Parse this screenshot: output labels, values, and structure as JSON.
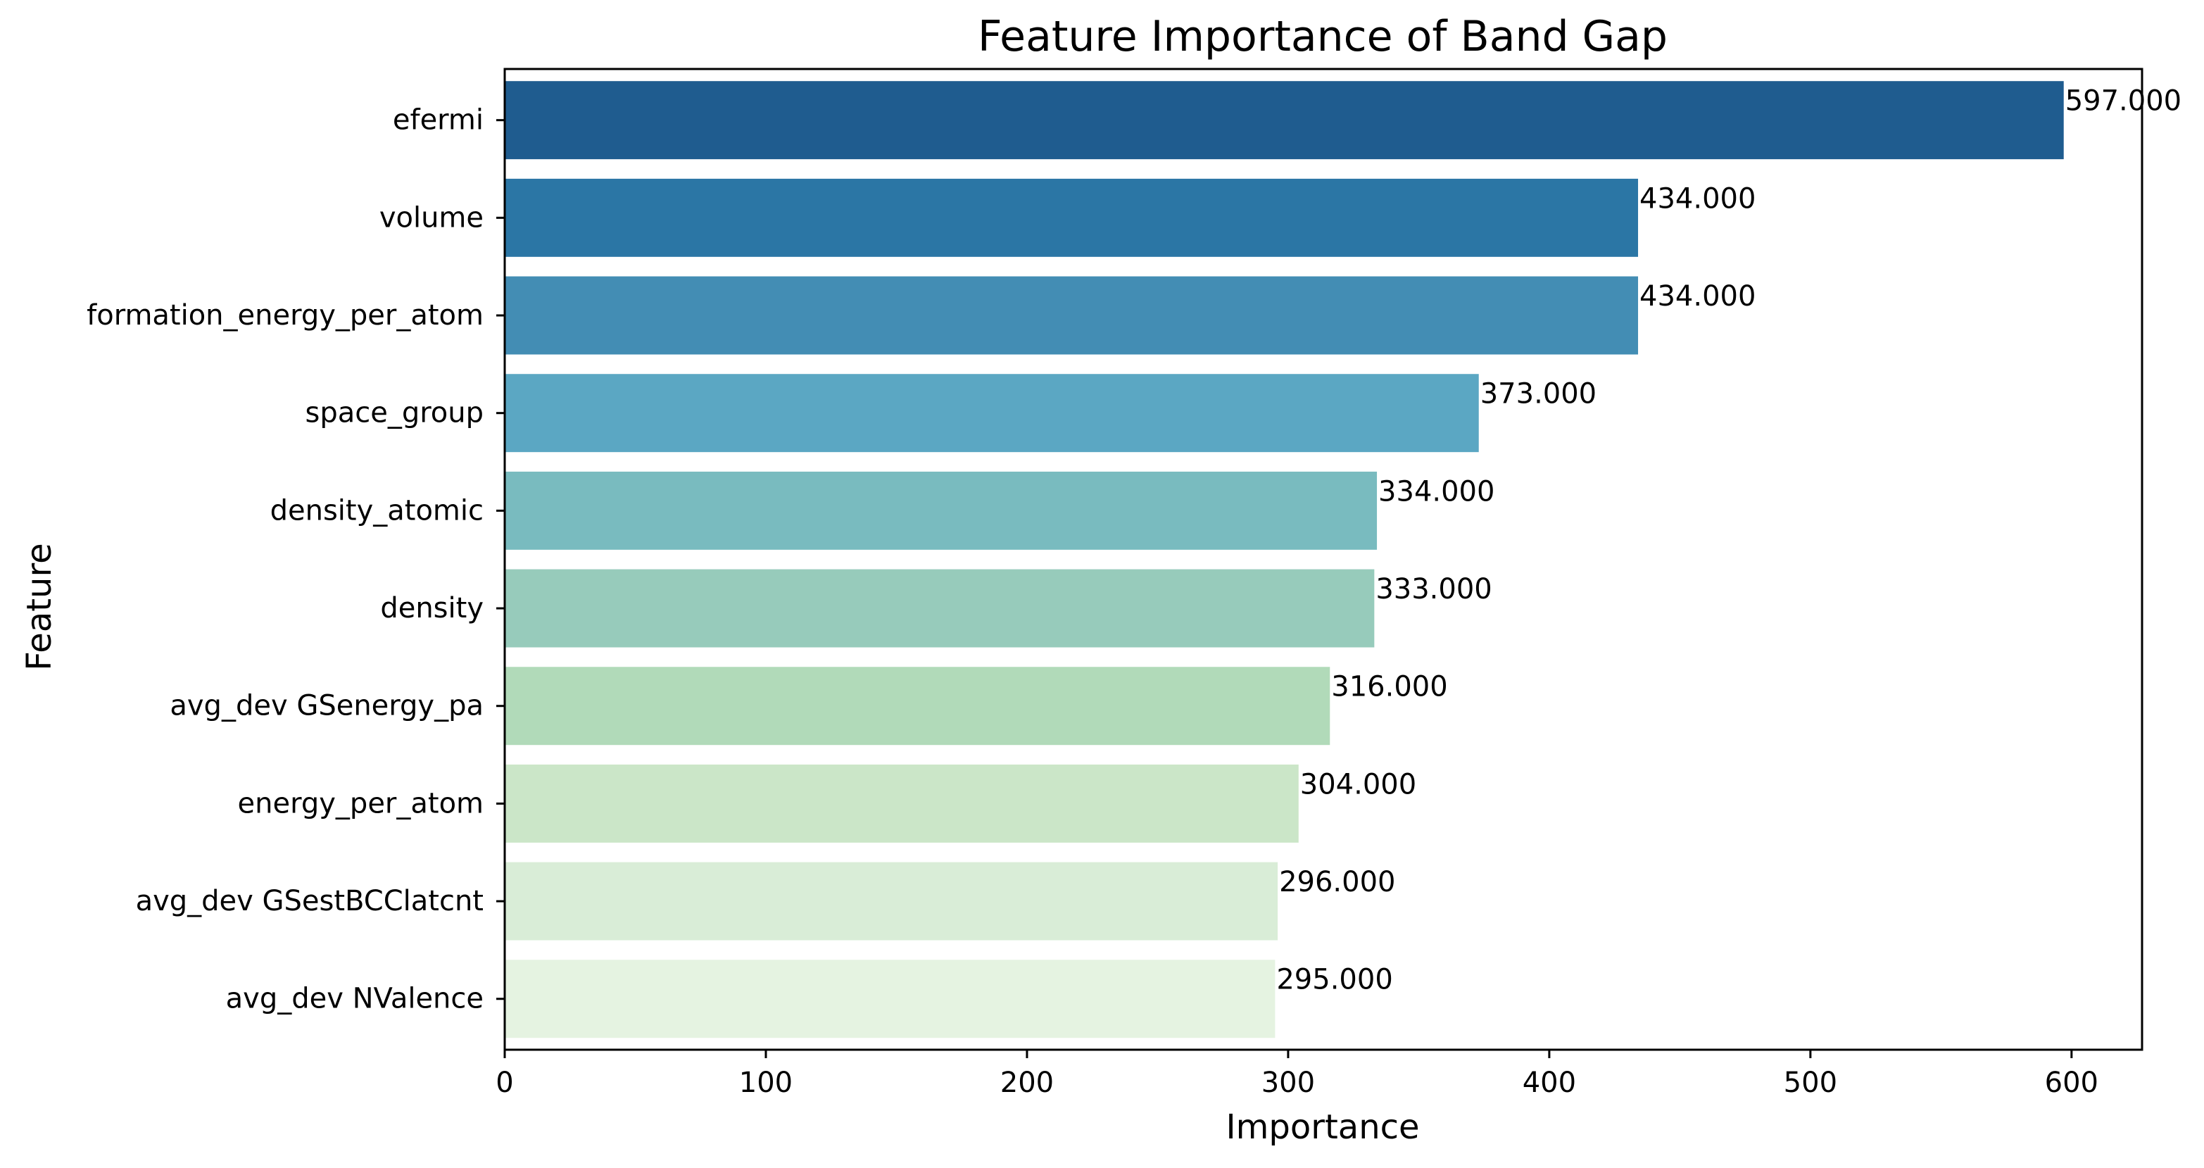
{
  "chart_data": {
    "type": "bar",
    "orientation": "horizontal",
    "title": "Feature Importance of Band Gap",
    "xlabel": "Importance",
    "ylabel": "Feature",
    "xlim": [
      0,
      627
    ],
    "xticks": [
      0,
      100,
      200,
      300,
      400,
      500,
      600
    ],
    "grid": false,
    "categories": [
      "efermi",
      "volume",
      "formation_energy_per_atom",
      "space_group",
      "density_atomic",
      "density",
      "avg_dev GSenergy_pa",
      "energy_per_atom",
      "avg_dev GSestBCClatcnt",
      "avg_dev NValence"
    ],
    "values": [
      597,
      434,
      434,
      373,
      334,
      333,
      316,
      304,
      296,
      295
    ],
    "value_labels": [
      "597.000",
      "434.000",
      "434.000",
      "373.000",
      "334.000",
      "333.000",
      "316.000",
      "304.000",
      "296.000",
      "295.000"
    ],
    "colors": [
      "#1f5c8f",
      "#2b76a5",
      "#438dB4",
      "#5ba7c3",
      "#79bbbf",
      "#97cbbb",
      "#b1dab9",
      "#cbe6c8",
      "#d9edd7",
      "#e5f3e1"
    ]
  }
}
